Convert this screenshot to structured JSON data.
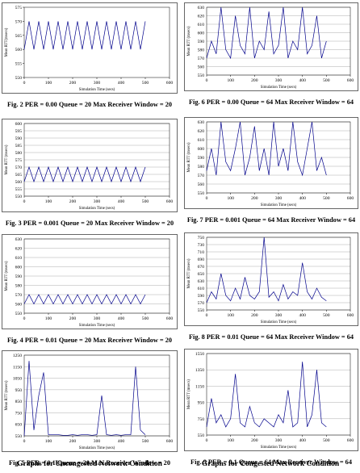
{
  "chart_data": [
    {
      "type": "line",
      "caption": "Fig. 2 PER = 0.00 Queue = 20 Max Receiver Window = 20",
      "xlabel": "Simulation Time (secs)",
      "ylabel": "Mean RTT(msecs)",
      "grid": false,
      "color": "#00008b",
      "x": [
        0,
        20,
        40,
        60,
        80,
        100,
        120,
        140,
        160,
        180,
        200,
        220,
        240,
        260,
        280,
        300,
        320,
        340,
        360,
        380,
        400,
        420,
        440,
        460,
        480,
        500
      ],
      "values": [
        560,
        570,
        560,
        570,
        560,
        570,
        560,
        570,
        560,
        570,
        560,
        570,
        560,
        570,
        560,
        570,
        560,
        570,
        560,
        570,
        560,
        570,
        560,
        570,
        560,
        570
      ],
      "xlim": [
        0,
        600
      ],
      "xticks": [
        0,
        100,
        200,
        300,
        400,
        500,
        600
      ],
      "ylim": [
        550,
        575
      ],
      "yticks": [
        550,
        555,
        560,
        565,
        570,
        575
      ]
    },
    {
      "type": "line",
      "caption": "Fig. 6 PER = 0.00 Queue = 64 Max Receiver Window = 64",
      "xlabel": "Simulation Time (secs)",
      "ylabel": "Mean RTT (msecs)",
      "grid": true,
      "color": "#00008b",
      "x": [
        0,
        20,
        40,
        60,
        80,
        100,
        120,
        140,
        160,
        180,
        200,
        220,
        240,
        260,
        280,
        300,
        320,
        340,
        360,
        380,
        400,
        420,
        440,
        460,
        480,
        500
      ],
      "values": [
        570,
        590,
        575,
        630,
        580,
        570,
        620,
        585,
        575,
        630,
        570,
        590,
        580,
        625,
        575,
        585,
        630,
        570,
        590,
        580,
        630,
        575,
        585,
        620,
        570,
        590
      ],
      "xlim": [
        0,
        600
      ],
      "xticks": [
        0,
        100,
        200,
        300,
        400,
        500,
        600
      ],
      "ylim": [
        550,
        630
      ],
      "yticks": [
        550,
        560,
        570,
        580,
        590,
        600,
        610,
        620,
        630
      ]
    },
    {
      "type": "line",
      "caption": "Fig. 3 PER = 0.001 Queue = 20 Max Receiver Window = 20",
      "xlabel": "Simulation Time (secs)",
      "ylabel": "Mean RTT (msecs)",
      "grid": true,
      "color": "#00008b",
      "x": [
        0,
        20,
        40,
        60,
        80,
        100,
        120,
        140,
        160,
        180,
        200,
        220,
        240,
        260,
        280,
        300,
        320,
        340,
        360,
        380,
        400,
        420,
        440,
        460,
        480,
        500
      ],
      "values": [
        560,
        570,
        560,
        570,
        560,
        570,
        560,
        570,
        560,
        570,
        560,
        570,
        560,
        570,
        560,
        570,
        560,
        570,
        560,
        570,
        560,
        570,
        560,
        570,
        560,
        570
      ],
      "xlim": [
        0,
        600
      ],
      "xticks": [
        0,
        100,
        200,
        300,
        400,
        500,
        600
      ],
      "ylim": [
        550,
        600
      ],
      "yticks": [
        550,
        555,
        560,
        565,
        570,
        575,
        580,
        585,
        590,
        595,
        600
      ]
    },
    {
      "type": "line",
      "caption": "Fig. 7 PER = 0.001 Queue = 64 Max Receiver Window = 64",
      "xlabel": "Simulation Time (secs)",
      "ylabel": "Mean RTT (msecs)",
      "grid": true,
      "color": "#00008b",
      "x": [
        0,
        20,
        40,
        60,
        80,
        100,
        120,
        140,
        160,
        180,
        200,
        220,
        240,
        260,
        280,
        300,
        320,
        340,
        360,
        380,
        400,
        420,
        440,
        460,
        480,
        500
      ],
      "values": [
        575,
        600,
        570,
        630,
        585,
        575,
        600,
        630,
        570,
        590,
        625,
        575,
        600,
        570,
        630,
        580,
        600,
        575,
        630,
        585,
        570,
        600,
        630,
        575,
        590,
        570
      ],
      "xlim": [
        0,
        600
      ],
      "xticks": [
        0,
        100,
        200,
        300,
        400,
        500,
        600
      ],
      "ylim": [
        550,
        630
      ],
      "yticks": [
        550,
        560,
        570,
        580,
        590,
        600,
        610,
        620,
        630
      ]
    },
    {
      "type": "line",
      "caption": "Fig. 4 PER = 0.01 Queue = 20 Max Receiver Window = 20",
      "xlabel": "Simulation Time (secs)",
      "ylabel": "Mean RTT (msecs)",
      "grid": true,
      "color": "#00008b",
      "x": [
        0,
        20,
        40,
        60,
        80,
        100,
        120,
        140,
        160,
        180,
        200,
        220,
        240,
        260,
        280,
        300,
        320,
        340,
        360,
        380,
        400,
        420,
        440,
        460,
        480,
        500
      ],
      "values": [
        560,
        570,
        560,
        570,
        560,
        570,
        560,
        570,
        560,
        570,
        560,
        570,
        560,
        570,
        560,
        570,
        560,
        570,
        560,
        570,
        560,
        570,
        560,
        570,
        560,
        570
      ],
      "xlim": [
        0,
        600
      ],
      "xticks": [
        0,
        100,
        200,
        300,
        400,
        500,
        600
      ],
      "ylim": [
        550,
        630
      ],
      "yticks": [
        550,
        560,
        570,
        580,
        590,
        600,
        610,
        620,
        630
      ]
    },
    {
      "type": "line",
      "caption": "Fig. 8 PER = 0.01 Queue = 64 Max Receiver Window = 64",
      "xlabel": "Simulation Time (secs)",
      "ylabel": "Mean RTT (msecs)",
      "grid": true,
      "color": "#00008b",
      "x": [
        0,
        20,
        40,
        60,
        80,
        100,
        120,
        140,
        160,
        180,
        200,
        220,
        240,
        260,
        280,
        300,
        320,
        340,
        360,
        380,
        400,
        420,
        440,
        460,
        480,
        500
      ],
      "values": [
        570,
        600,
        580,
        650,
        590,
        575,
        610,
        580,
        640,
        590,
        580,
        600,
        750,
        585,
        600,
        575,
        620,
        580,
        600,
        590,
        680,
        600,
        580,
        610,
        585,
        575
      ],
      "xlim": [
        0,
        600
      ],
      "xticks": [
        0,
        100,
        200,
        300,
        400,
        500,
        600
      ],
      "ylim": [
        550,
        750
      ],
      "yticks": [
        550,
        570,
        590,
        610,
        630,
        650,
        670,
        690,
        710,
        730,
        750
      ]
    },
    {
      "type": "line",
      "caption": "Fig. 5 PER = 0.1 Queue = 20 Max Receiver Window = 20",
      "xlabel": "Simulation Time (secs)",
      "ylabel": "Mean RTT (msecs)",
      "grid": true,
      "color": "#00008b",
      "x": [
        0,
        20,
        40,
        60,
        80,
        100,
        120,
        140,
        160,
        180,
        200,
        220,
        240,
        260,
        280,
        300,
        320,
        340,
        360,
        380,
        400,
        420,
        440,
        460,
        480,
        500
      ],
      "values": [
        550,
        1200,
        600,
        900,
        1100,
        560,
        560,
        560,
        555,
        555,
        560,
        555,
        560,
        560,
        555,
        560,
        900,
        560,
        555,
        560,
        555,
        560,
        560,
        1150,
        600,
        560
      ],
      "xlim": [
        0,
        600
      ],
      "xticks": [
        0,
        100,
        200,
        300,
        400,
        500,
        600
      ],
      "ylim": [
        550,
        1250
      ],
      "yticks": [
        550,
        650,
        750,
        850,
        950,
        1050,
        1150,
        1250
      ]
    },
    {
      "type": "line",
      "caption": "Fig. 9 PER = 0.1 Queue = 64 Max Receiver Window = 64",
      "xlabel": "Simulation Time (secs)",
      "ylabel": "Mean RTT (msecs)",
      "grid": true,
      "color": "#00008b",
      "x": [
        0,
        20,
        40,
        60,
        80,
        100,
        120,
        140,
        160,
        180,
        200,
        220,
        240,
        260,
        280,
        300,
        320,
        340,
        360,
        380,
        400,
        420,
        440,
        460,
        480,
        500
      ],
      "values": [
        650,
        1000,
        700,
        800,
        650,
        750,
        1300,
        700,
        650,
        900,
        700,
        650,
        750,
        700,
        650,
        800,
        700,
        1100,
        650,
        700,
        1450,
        650,
        800,
        1350,
        700,
        650
      ],
      "xlim": [
        0,
        600
      ],
      "xticks": [
        0,
        100,
        200,
        300,
        400,
        500,
        600
      ],
      "ylim": [
        550,
        1550
      ],
      "yticks": [
        550,
        750,
        950,
        1150,
        1350,
        1550
      ]
    }
  ],
  "footers": [
    "Graphs for Uncongested Network Condition",
    "Graphs for Congested Network Condition"
  ]
}
